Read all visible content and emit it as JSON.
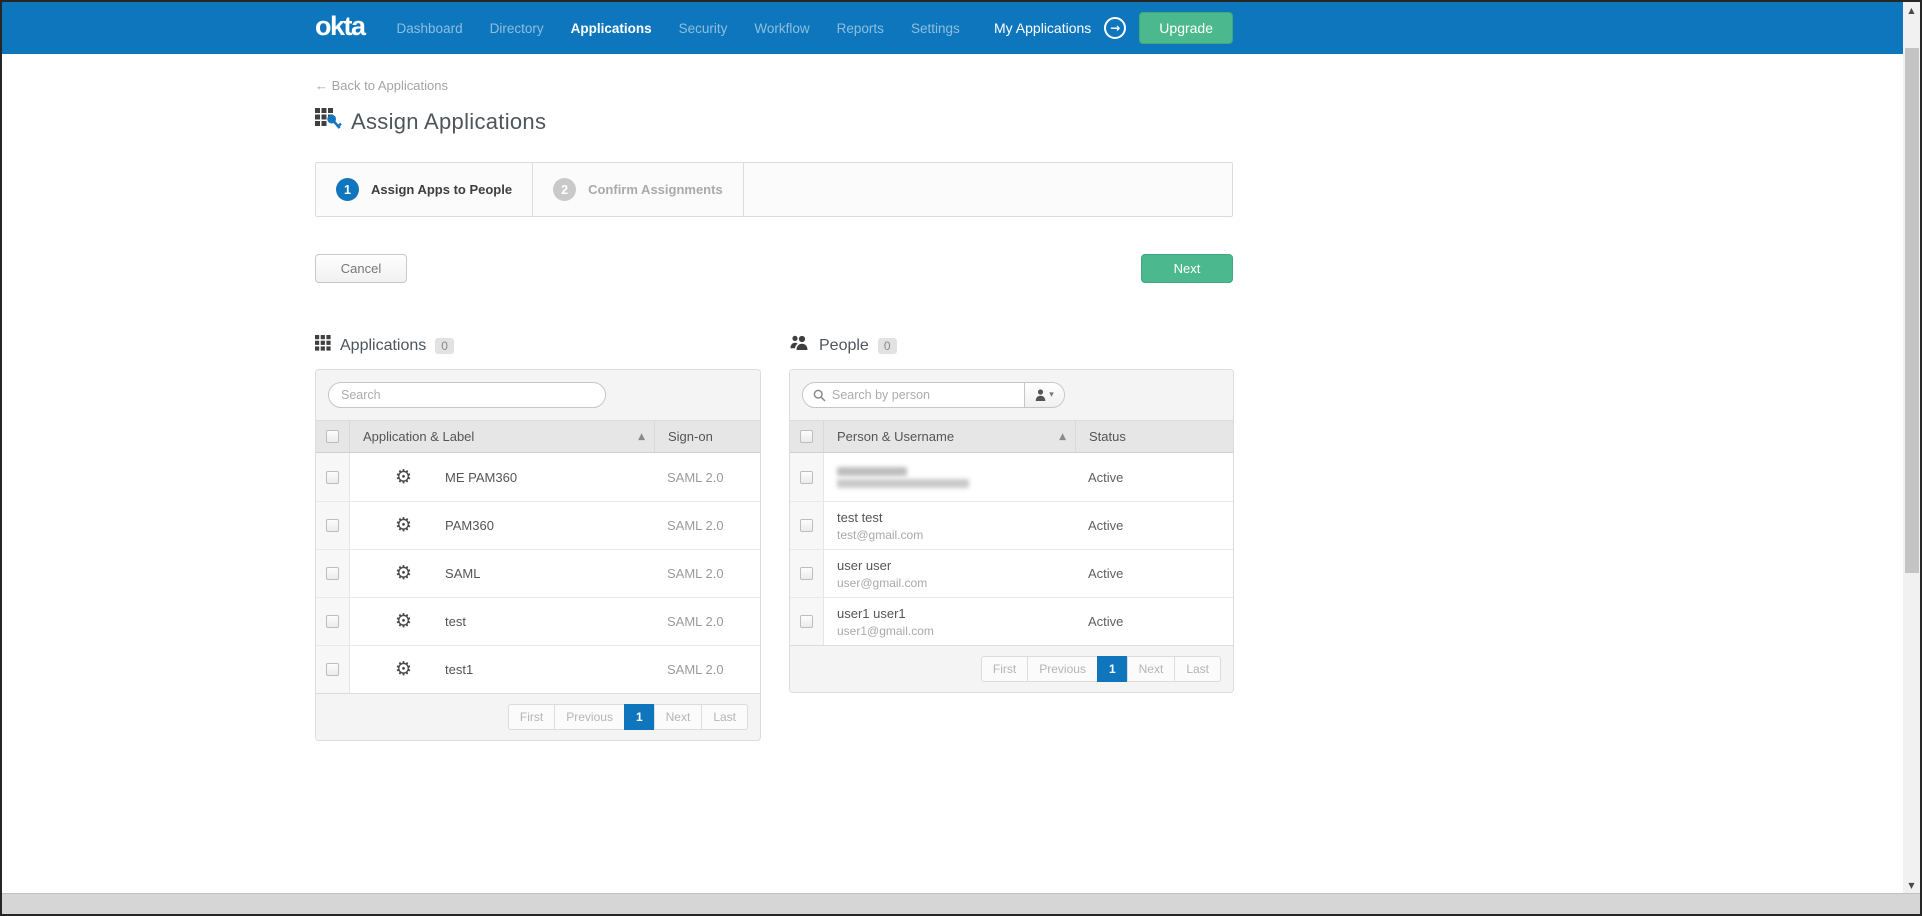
{
  "nav": {
    "brand": "okta",
    "items": [
      {
        "label": "Dashboard",
        "active": false
      },
      {
        "label": "Directory",
        "active": false
      },
      {
        "label": "Applications",
        "active": true
      },
      {
        "label": "Security",
        "active": false
      },
      {
        "label": "Workflow",
        "active": false
      },
      {
        "label": "Reports",
        "active": false
      },
      {
        "label": "Settings",
        "active": false
      }
    ],
    "my_applications_label": "My Applications",
    "upgrade_label": "Upgrade"
  },
  "page": {
    "back_link": "← Back to Applications",
    "title": "Assign Applications",
    "steps": [
      {
        "number": "1",
        "label": "Assign Apps to People",
        "active": true
      },
      {
        "number": "2",
        "label": "Confirm Assignments",
        "active": false
      }
    ],
    "cancel_label": "Cancel",
    "next_label": "Next"
  },
  "applications_panel": {
    "title": "Applications",
    "count_badge": "0",
    "search_placeholder": "Search",
    "table": {
      "columns": [
        "Application & Label",
        "Sign-on"
      ],
      "sort_column": "Application & Label",
      "sort_direction": "asc",
      "rows": [
        {
          "name": "ME PAM360",
          "sign_on": "SAML 2.0"
        },
        {
          "name": "PAM360",
          "sign_on": "SAML 2.0"
        },
        {
          "name": "SAML",
          "sign_on": "SAML 2.0"
        },
        {
          "name": "test",
          "sign_on": "SAML 2.0"
        },
        {
          "name": "test1",
          "sign_on": "SAML 2.0"
        }
      ]
    },
    "pagination": {
      "buttons": [
        "First",
        "Previous",
        "1",
        "Next",
        "Last"
      ],
      "current_page": "1"
    }
  },
  "people_panel": {
    "title": "People",
    "count_badge": "0",
    "search_placeholder": "Search by person",
    "table": {
      "columns": [
        "Person & Username",
        "Status"
      ],
      "sort_column": "Person & Username",
      "sort_direction": "asc",
      "rows": [
        {
          "name": "",
          "username": "",
          "status": "Active",
          "redacted": true
        },
        {
          "name": "test test",
          "username": "test@gmail.com",
          "status": "Active",
          "redacted": false
        },
        {
          "name": "user user",
          "username": "user@gmail.com",
          "status": "Active",
          "redacted": false
        },
        {
          "name": "user1 user1",
          "username": "user1@gmail.com",
          "status": "Active",
          "redacted": false
        }
      ]
    },
    "pagination": {
      "buttons": [
        "First",
        "Previous",
        "1",
        "Next",
        "Last"
      ],
      "current_page": "1"
    }
  },
  "icons": {
    "gear": "⚙",
    "sort_asc": "▲",
    "caret_down": "▾",
    "nav_arrow": "→",
    "scroll_up": "▲",
    "scroll_down": "▼"
  },
  "colors": {
    "nav_blue": "#0e76bd",
    "accent_green": "#4cb88d",
    "active_page_blue": "#0f76bd"
  }
}
